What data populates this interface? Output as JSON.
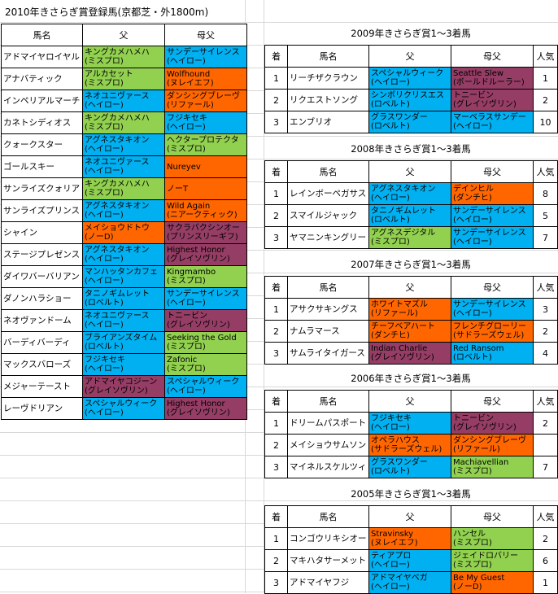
{
  "title": "2010年きさらぎ賞登録馬(京都芝・外1800m)",
  "colors": {
    "blue": "#00b0f0",
    "green": "#92d050",
    "orange": "#ff6600",
    "purple": "#953d64"
  },
  "left": {
    "headers": [
      "馬名",
      "父",
      "母父"
    ],
    "rows": [
      {
        "name": "アドマイヤロイヤル",
        "sire": [
          "キングカメハメハ",
          "(ミスプロ)"
        ],
        "sire_c": "green",
        "bms": [
          "サンデーサイレンス",
          "(ヘイロー)"
        ],
        "bms_c": "blue"
      },
      {
        "name": "アナバティック",
        "sire": [
          "アルカセット",
          "(ミスプロ)"
        ],
        "sire_c": "green",
        "bms": [
          "Wolfhound",
          "(ヌレイエフ)"
        ],
        "bms_c": "orange"
      },
      {
        "name": "インペリアルマーチ",
        "sire": [
          "ネオユニヴァース",
          "(ヘイロー)"
        ],
        "sire_c": "blue",
        "bms": [
          "ダンシングブレーヴ",
          "(リファール)"
        ],
        "bms_c": "orange"
      },
      {
        "name": "カネトシディオス",
        "sire": [
          "キングカメハメハ",
          "(ミスプロ)"
        ],
        "sire_c": "green",
        "bms": [
          "フジキセキ",
          "(ヘイロー)"
        ],
        "bms_c": "blue"
      },
      {
        "name": "クォークスター",
        "sire": [
          "アグネスタキオン",
          "(ヘイロー)"
        ],
        "sire_c": "blue",
        "bms": [
          "ヘクタープロテクタ",
          "(ミスプロ)"
        ],
        "bms_c": "green"
      },
      {
        "name": "ゴールスキー",
        "sire": [
          "ネオユニヴァース",
          "(ヘイロー)"
        ],
        "sire_c": "blue",
        "bms": [
          "Nureyev",
          ""
        ],
        "bms_c": "orange"
      },
      {
        "name": "サンライズクォリア",
        "sire": [
          "キングカメハメハ",
          "(ミスプロ)"
        ],
        "sire_c": "green",
        "bms": [
          "ノーT",
          ""
        ],
        "bms_c": "orange"
      },
      {
        "name": "サンライズプリンス",
        "sire": [
          "アグネスタキオン",
          "(ヘイロー)"
        ],
        "sire_c": "blue",
        "bms": [
          "Wild Again",
          "(ニアークティック)"
        ],
        "bms_c": "orange"
      },
      {
        "name": "シャイン",
        "sire": [
          "メイショウドトウ",
          "(ノーD)"
        ],
        "sire_c": "orange",
        "bms": [
          "サクラバクシンオー",
          "(プリンスリーギフ)"
        ],
        "bms_c": "purple"
      },
      {
        "name": "ステージプレゼンス",
        "sire": [
          "アグネスタキオン",
          "(ヘイロー)"
        ],
        "sire_c": "blue",
        "bms": [
          "Highest Honor",
          "(グレイソヴリン)"
        ],
        "bms_c": "purple"
      },
      {
        "name": "ダイワバーバリアン",
        "sire": [
          "マンハッタンカフェ",
          "(ヘイロー)"
        ],
        "sire_c": "blue",
        "bms": [
          "Kingmambo",
          "(ミスプロ)"
        ],
        "bms_c": "green"
      },
      {
        "name": "ダノンハラショー",
        "sire": [
          "タニノギムレット",
          "(ロベルト)"
        ],
        "sire_c": "blue",
        "bms": [
          "サンデーサイレンス",
          "(ヘイロー)"
        ],
        "bms_c": "blue"
      },
      {
        "name": "ネオヴァンドーム",
        "sire": [
          "ネオユニヴァース",
          "(ヘイロー)"
        ],
        "sire_c": "blue",
        "bms": [
          "トニービン",
          "(グレイソヴリン)"
        ],
        "bms_c": "purple"
      },
      {
        "name": "バーディバーディ",
        "sire": [
          "ブライアンズタイム",
          "(ロベルト)"
        ],
        "sire_c": "blue",
        "bms": [
          "Seeking the Gold",
          "(ミスプロ)"
        ],
        "bms_c": "green"
      },
      {
        "name": "マックスバローズ",
        "sire": [
          "フジキセキ",
          "(ヘイロー)"
        ],
        "sire_c": "blue",
        "bms": [
          "Zafonic",
          "(ミスプロ)"
        ],
        "bms_c": "green"
      },
      {
        "name": "メジャーテースト",
        "sire": [
          "アドマイヤコジーン",
          "(グレイソヴリン)"
        ],
        "sire_c": "purple",
        "bms": [
          "スペシャルウィーク",
          "(ヘイロー)"
        ],
        "bms_c": "blue"
      },
      {
        "name": "レーヴドリアン",
        "sire": [
          "スペシャルウィーク",
          "(ヘイロー)"
        ],
        "sire_c": "blue",
        "bms": [
          "Highest Honor",
          "(グレイソヴリン)"
        ],
        "bms_c": "purple"
      }
    ]
  },
  "sections": [
    {
      "title": "2009年きさらぎ賞1～3着馬",
      "headers": [
        "着",
        "馬名",
        "父",
        "母父",
        "人気"
      ],
      "rows": [
        {
          "pos": "1",
          "name": "リーチザクラウン",
          "sire": [
            "スペシャルウィーク",
            "(ヘイロー)"
          ],
          "sire_c": "blue",
          "bms": [
            "Seattle Slew",
            "(ボールドルーラー)"
          ],
          "bms_c": "purple",
          "pop": "1"
        },
        {
          "pos": "2",
          "name": "リクエストソング",
          "sire": [
            "シンボリクリスエス",
            "(ロベルト)"
          ],
          "sire_c": "blue",
          "bms": [
            "トニービン",
            "(グレイソヴリン)"
          ],
          "bms_c": "purple",
          "pop": "2"
        },
        {
          "pos": "3",
          "name": "エンブリオ",
          "sire": [
            "グラスワンダー",
            "(ロベルト)"
          ],
          "sire_c": "blue",
          "bms": [
            "マーベラスサンデー",
            "(ヘイロー)"
          ],
          "bms_c": "blue",
          "pop": "10"
        }
      ]
    },
    {
      "title": "2008年きさらぎ賞1～3着馬",
      "headers": [
        "着",
        "馬名",
        "父",
        "母父",
        "人気"
      ],
      "rows": [
        {
          "pos": "1",
          "name": "レインボーペガサス",
          "sire": [
            "アグネスタキオン",
            "(ヘイロー)"
          ],
          "sire_c": "blue",
          "bms": [
            "デインヒル",
            "(ダンチヒ)"
          ],
          "bms_c": "orange",
          "pop": "8"
        },
        {
          "pos": "2",
          "name": "スマイルジャック",
          "sire": [
            "タニノギムレット",
            "(ロベルト)"
          ],
          "sire_c": "blue",
          "bms": [
            "サンデーサイレンス",
            "(ヘイロー)"
          ],
          "bms_c": "blue",
          "pop": "5"
        },
        {
          "pos": "3",
          "name": "ヤマニンキングリー",
          "sire": [
            "アグネスデジタル",
            "(ミスプロ)"
          ],
          "sire_c": "green",
          "bms": [
            "サンデーサイレンス",
            "(ヘイロー)"
          ],
          "bms_c": "blue",
          "pop": "7"
        }
      ]
    },
    {
      "title": "2007年きさらぎ賞1～3着馬",
      "headers": [
        "着",
        "馬名",
        "父",
        "母父",
        "人気"
      ],
      "rows": [
        {
          "pos": "1",
          "name": "アサクサキングス",
          "sire": [
            "ホワイトマズル",
            "(リファール)"
          ],
          "sire_c": "orange",
          "bms": [
            "サンデーサイレンス",
            "(ヘイロー)"
          ],
          "bms_c": "blue",
          "pop": "3"
        },
        {
          "pos": "2",
          "name": "ナムラマース",
          "sire": [
            "チーフベアハート",
            "(ダンチヒ)"
          ],
          "sire_c": "orange",
          "bms": [
            "フレンチグローリー",
            "(サドラーズウェル)"
          ],
          "bms_c": "orange",
          "pop": "2"
        },
        {
          "pos": "3",
          "name": "サムライタイガース",
          "sire": [
            "Indian Charlie",
            "(グレイソヴリン)"
          ],
          "sire_c": "purple",
          "bms": [
            "Red Ransom",
            "(ロベルト)"
          ],
          "bms_c": "blue",
          "pop": "4"
        }
      ]
    },
    {
      "title": "2006年きさらぎ賞1～3着馬",
      "headers": [
        "着",
        "馬名",
        "父",
        "母父",
        "人気"
      ],
      "rows": [
        {
          "pos": "1",
          "name": "ドリームパスポート",
          "sire": [
            "フジキセキ",
            "(ヘイロー)"
          ],
          "sire_c": "blue",
          "bms": [
            "トニービン",
            "(グレイソヴリン)"
          ],
          "bms_c": "purple",
          "pop": "2"
        },
        {
          "pos": "2",
          "name": "メイショウサムソン",
          "sire": [
            "オペラハウス",
            "(サドラーズウェル)"
          ],
          "sire_c": "orange",
          "bms": [
            "ダンシングブレーヴ",
            "(リファール)"
          ],
          "bms_c": "orange",
          "pop": ""
        },
        {
          "pos": "3",
          "name": "マイネルスケルツィ",
          "sire": [
            "グラスワンダー",
            "(ロベルト)"
          ],
          "sire_c": "blue",
          "bms": [
            "Machiavellian",
            "(ミスプロ)"
          ],
          "bms_c": "green",
          "pop": "7"
        }
      ]
    },
    {
      "title": "2005年きさらぎ賞1～3着馬",
      "headers": [
        "着",
        "馬名",
        "父",
        "母父",
        "人気"
      ],
      "rows": [
        {
          "pos": "1",
          "name": "コンゴウリキシオー",
          "sire": [
            "Stravinsky",
            "(ヌレイエフ)"
          ],
          "sire_c": "orange",
          "bms": [
            "ハンセル",
            "(ミスプロ)"
          ],
          "bms_c": "green",
          "pop": "2"
        },
        {
          "pos": "2",
          "name": "マキハタサーメット",
          "sire": [
            "ティアプロ",
            "(ヘイロー)"
          ],
          "sire_c": "blue",
          "bms": [
            "ジェイドロバリー",
            "(ミスプロ)"
          ],
          "bms_c": "green",
          "pop": "6"
        },
        {
          "pos": "3",
          "name": "アドマイヤフジ",
          "sire": [
            "アドマイヤベガ",
            "(ヘイロー)"
          ],
          "sire_c": "blue",
          "bms": [
            "Be My Guest",
            "(ノーD)"
          ],
          "bms_c": "orange",
          "pop": "1"
        }
      ]
    }
  ]
}
